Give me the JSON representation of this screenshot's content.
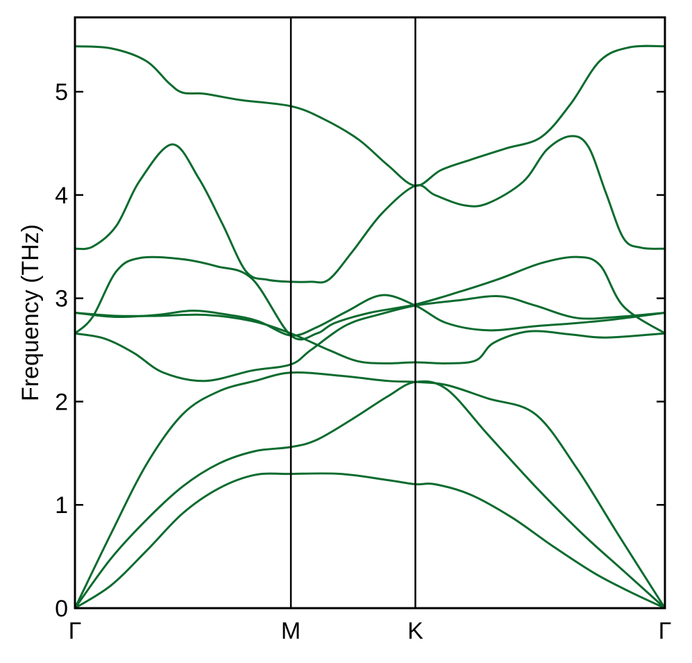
{
  "chart_data": {
    "type": "line",
    "title": "",
    "xlabel": "",
    "ylabel": "Frequency (THz)",
    "ylim": [
      0,
      5.72
    ],
    "xlim": [
      0,
      1
    ],
    "grid": false,
    "legend": "none",
    "line_color": "#0b6b2e",
    "yticks": [
      0,
      1,
      2,
      3,
      4,
      5
    ],
    "ytick_labels": [
      "0",
      "1",
      "2",
      "3",
      "4",
      "5"
    ],
    "high_symmetry_points": [
      {
        "label": "Γ",
        "x": 0.0
      },
      {
        "label": "M",
        "x": 0.366
      },
      {
        "label": "K",
        "x": 0.577
      },
      {
        "label": "Γ",
        "x": 1.0
      }
    ],
    "series": [
      {
        "points": [
          [
            0,
            0
          ],
          [
            0.061,
            0.22
          ],
          [
            0.122,
            0.56
          ],
          [
            0.183,
            0.92
          ],
          [
            0.244,
            1.16
          ],
          [
            0.305,
            1.29
          ],
          [
            0.366,
            1.3
          ],
          [
            0.45,
            1.3
          ],
          [
            0.53,
            1.24
          ],
          [
            0.577,
            1.2
          ],
          [
            0.61,
            1.2
          ],
          [
            0.67,
            1.1
          ],
          [
            0.74,
            0.88
          ],
          [
            0.81,
            0.6
          ],
          [
            0.88,
            0.34
          ],
          [
            0.94,
            0.16
          ],
          [
            1.0,
            0
          ]
        ]
      },
      {
        "points": [
          [
            0,
            0
          ],
          [
            0.061,
            0.48
          ],
          [
            0.122,
            0.86
          ],
          [
            0.183,
            1.18
          ],
          [
            0.244,
            1.4
          ],
          [
            0.305,
            1.52
          ],
          [
            0.366,
            1.56
          ],
          [
            0.41,
            1.63
          ],
          [
            0.47,
            1.83
          ],
          [
            0.53,
            2.05
          ],
          [
            0.577,
            2.19
          ],
          [
            0.63,
            2.12
          ],
          [
            0.7,
            1.68
          ],
          [
            0.78,
            1.18
          ],
          [
            0.86,
            0.72
          ],
          [
            0.93,
            0.36
          ],
          [
            1.0,
            0
          ]
        ]
      },
      {
        "points": [
          [
            0,
            0
          ],
          [
            0.061,
            0.72
          ],
          [
            0.122,
            1.4
          ],
          [
            0.183,
            1.88
          ],
          [
            0.244,
            2.1
          ],
          [
            0.305,
            2.2
          ],
          [
            0.366,
            2.28
          ],
          [
            0.45,
            2.25
          ],
          [
            0.53,
            2.2
          ],
          [
            0.577,
            2.19
          ],
          [
            0.63,
            2.16
          ],
          [
            0.7,
            2.03
          ],
          [
            0.78,
            1.88
          ],
          [
            0.85,
            1.36
          ],
          [
            0.92,
            0.72
          ],
          [
            1.0,
            0
          ]
        ]
      },
      {
        "points": [
          [
            0,
            2.66
          ],
          [
            0.05,
            2.61
          ],
          [
            0.1,
            2.47
          ],
          [
            0.15,
            2.28
          ],
          [
            0.22,
            2.2
          ],
          [
            0.3,
            2.3
          ],
          [
            0.366,
            2.36
          ],
          [
            0.4,
            2.5
          ],
          [
            0.46,
            2.74
          ],
          [
            0.52,
            2.85
          ],
          [
            0.577,
            2.93
          ],
          [
            0.65,
            2.98
          ],
          [
            0.72,
            3.02
          ],
          [
            0.78,
            2.93
          ],
          [
            0.85,
            2.81
          ],
          [
            0.92,
            2.82
          ],
          [
            1.0,
            2.86
          ]
        ]
      },
      {
        "points": [
          [
            0,
            2.86
          ],
          [
            0.07,
            2.83
          ],
          [
            0.14,
            2.83
          ],
          [
            0.22,
            2.84
          ],
          [
            0.3,
            2.78
          ],
          [
            0.366,
            2.66
          ],
          [
            0.43,
            2.5
          ],
          [
            0.48,
            2.39
          ],
          [
            0.53,
            2.37
          ],
          [
            0.577,
            2.38
          ],
          [
            0.63,
            2.37
          ],
          [
            0.68,
            2.4
          ],
          [
            0.71,
            2.57
          ],
          [
            0.77,
            2.68
          ],
          [
            0.84,
            2.65
          ],
          [
            0.9,
            2.62
          ],
          [
            1.0,
            2.66
          ]
        ]
      },
      {
        "points": [
          [
            0,
            2.86
          ],
          [
            0.07,
            2.82
          ],
          [
            0.14,
            2.84
          ],
          [
            0.2,
            2.88
          ],
          [
            0.26,
            2.84
          ],
          [
            0.31,
            2.78
          ],
          [
            0.366,
            2.64
          ],
          [
            0.41,
            2.72
          ],
          [
            0.46,
            2.87
          ],
          [
            0.52,
            3.03
          ],
          [
            0.577,
            2.93
          ],
          [
            0.63,
            2.76
          ],
          [
            0.7,
            2.69
          ],
          [
            0.78,
            2.73
          ],
          [
            0.85,
            2.76
          ],
          [
            0.92,
            2.8
          ],
          [
            1.0,
            2.86
          ]
        ]
      },
      {
        "points": [
          [
            0,
            2.66
          ],
          [
            0.03,
            2.82
          ],
          [
            0.07,
            3.26
          ],
          [
            0.11,
            3.39
          ],
          [
            0.18,
            3.38
          ],
          [
            0.24,
            3.31
          ],
          [
            0.3,
            3.19
          ],
          [
            0.366,
            2.64
          ],
          [
            0.41,
            2.66
          ],
          [
            0.44,
            2.76
          ],
          [
            0.5,
            2.86
          ],
          [
            0.577,
            2.94
          ],
          [
            0.65,
            3.06
          ],
          [
            0.72,
            3.19
          ],
          [
            0.79,
            3.34
          ],
          [
            0.85,
            3.4
          ],
          [
            0.89,
            3.32
          ],
          [
            0.93,
            2.92
          ],
          [
            1.0,
            2.66
          ]
        ]
      },
      {
        "points": [
          [
            0,
            3.48
          ],
          [
            0.03,
            3.5
          ],
          [
            0.07,
            3.7
          ],
          [
            0.11,
            4.14
          ],
          [
            0.165,
            4.49
          ],
          [
            0.21,
            4.16
          ],
          [
            0.25,
            3.72
          ],
          [
            0.29,
            3.26
          ],
          [
            0.326,
            3.18
          ],
          [
            0.366,
            3.16
          ],
          [
            0.4,
            3.16
          ],
          [
            0.43,
            3.18
          ],
          [
            0.47,
            3.45
          ],
          [
            0.52,
            3.82
          ],
          [
            0.577,
            4.09
          ],
          [
            0.61,
            4.0
          ],
          [
            0.66,
            3.9
          ],
          [
            0.7,
            3.92
          ],
          [
            0.76,
            4.13
          ],
          [
            0.8,
            4.44
          ],
          [
            0.84,
            4.57
          ],
          [
            0.87,
            4.47
          ],
          [
            0.9,
            4.02
          ],
          [
            0.93,
            3.58
          ],
          [
            0.96,
            3.49
          ],
          [
            1.0,
            3.48
          ]
        ]
      },
      {
        "points": [
          [
            0,
            5.44
          ],
          [
            0.061,
            5.42
          ],
          [
            0.12,
            5.3
          ],
          [
            0.16,
            5.08
          ],
          [
            0.183,
            4.99
          ],
          [
            0.22,
            4.98
          ],
          [
            0.28,
            4.92
          ],
          [
            0.366,
            4.86
          ],
          [
            0.42,
            4.74
          ],
          [
            0.48,
            4.54
          ],
          [
            0.53,
            4.29
          ],
          [
            0.577,
            4.09
          ],
          [
            0.62,
            4.24
          ],
          [
            0.67,
            4.34
          ],
          [
            0.73,
            4.45
          ],
          [
            0.79,
            4.56
          ],
          [
            0.84,
            4.88
          ],
          [
            0.89,
            5.3
          ],
          [
            0.94,
            5.43
          ],
          [
            1.0,
            5.44
          ]
        ]
      }
    ]
  }
}
